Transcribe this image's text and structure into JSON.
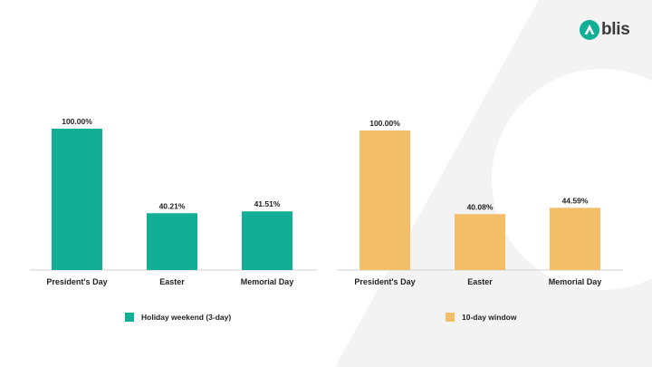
{
  "brand": {
    "name": "blis",
    "color": "#12ae96"
  },
  "chart_data": [
    {
      "type": "bar",
      "categories": [
        "President's Day",
        "Easter",
        "Memorial Day"
      ],
      "series": [
        {
          "name": "Holiday weekend (3-day)",
          "values": [
            100.0,
            40.21,
            41.51
          ],
          "labels": [
            "100.00%",
            "40.21%",
            "41.51%"
          ],
          "color": "#13ae96"
        }
      ],
      "ylim": [
        0,
        100
      ],
      "grid": false,
      "legend_position": "bottom"
    },
    {
      "type": "bar",
      "categories": [
        "President's Day",
        "Easter",
        "Memorial Day"
      ],
      "series": [
        {
          "name": "10-day window",
          "values": [
            100.0,
            40.08,
            44.59
          ],
          "labels": [
            "100.00%",
            "40.08%",
            "44.59%"
          ],
          "color": "#f3be68"
        }
      ],
      "ylim": [
        0,
        100
      ],
      "grid": false,
      "legend_position": "bottom"
    }
  ]
}
